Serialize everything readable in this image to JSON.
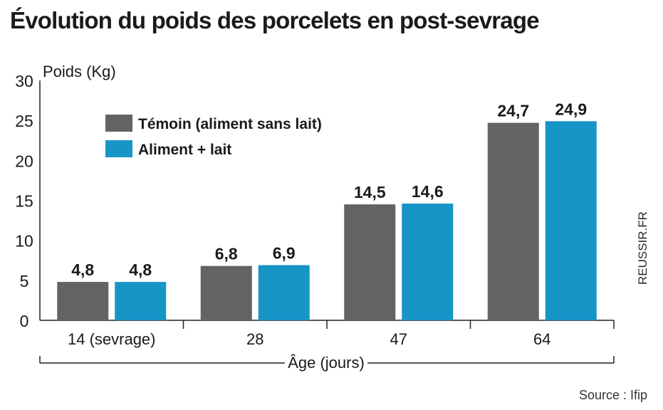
{
  "title": "Évolution du poids des porcelets en post-sevrage",
  "source": "Source : Ifip",
  "side_text": "REUSSIR.FR",
  "colors": {
    "temoin": "#636363",
    "lait": "#1795c6",
    "axis": "#222222"
  },
  "chart_data": {
    "type": "bar",
    "title": "Évolution du poids des porcelets en post-sevrage",
    "ylabel": "Poids (Kg)",
    "xlabel": "Âge (jours)",
    "ylim": [
      0,
      30
    ],
    "yticks": [
      0,
      5,
      10,
      15,
      20,
      25,
      30
    ],
    "categories": [
      "14 (sevrage)",
      "28",
      "47",
      "64"
    ],
    "series": [
      {
        "name": "Témoin (aliment sans lait)",
        "values": [
          4.8,
          6.8,
          14.5,
          24.7
        ],
        "labels": [
          "4,8",
          "6,8",
          "14,5",
          "24,7"
        ]
      },
      {
        "name": "Aliment + lait",
        "values": [
          4.8,
          6.9,
          14.6,
          24.9
        ],
        "labels": [
          "4,8",
          "6,9",
          "14,6",
          "24,9"
        ]
      }
    ],
    "grid": false,
    "legend": "top-left"
  }
}
